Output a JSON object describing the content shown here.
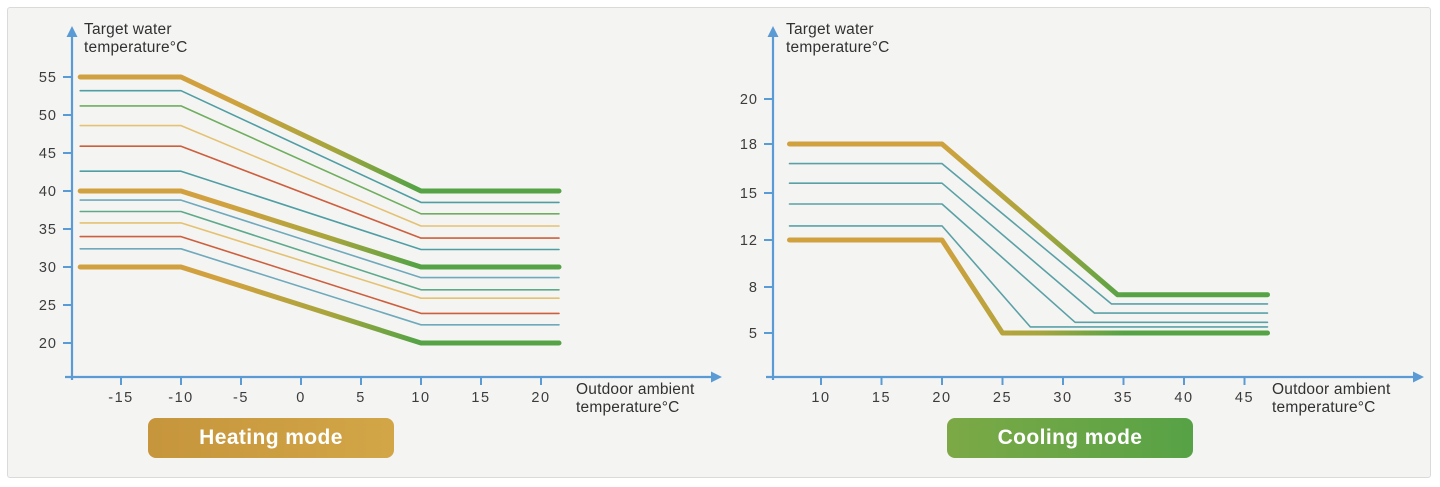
{
  "style": {
    "page_bg": "#ffffff",
    "panel_bg": "#f4f4f3",
    "panel_border": "#d9dbd9",
    "axis_color": "#5b9bd5",
    "tick_text_color": "#3c3c3c",
    "title_text_color": "#313131",
    "thick_line_gradient": [
      "#d2a13f",
      "#a8a53c",
      "#55a345"
    ]
  },
  "charts": [
    {
      "id": "heating",
      "y_title": {
        "line1": "Target water",
        "line2": "temperature°C"
      },
      "x_title": {
        "line1": "Outdoor ambient",
        "line2": "temperature°C"
      },
      "badge": {
        "label": "Heating mode",
        "color_left": "#c6953c",
        "color_right": "#d2a647",
        "text_color": "#ffffff"
      },
      "chart_data": {
        "type": "line",
        "title": "Heating mode",
        "ylabel": "Target water temperature°C",
        "xlabel": "Outdoor ambient temperature°C",
        "y_ticks": [
          55,
          50,
          45,
          40,
          35,
          30,
          25,
          20
        ],
        "x_ticks": [
          -15,
          -10,
          -5,
          0,
          5,
          10,
          15,
          20
        ],
        "x_range_drawn": [
          -18.4,
          21.5
        ],
        "grid": false,
        "series": [
          {
            "name": "upper-boundary",
            "style": "thick",
            "color": "gradient",
            "points": [
              [
                -18.4,
                55
              ],
              [
                -10,
                55
              ],
              [
                10,
                40
              ],
              [
                21.5,
                40
              ]
            ]
          },
          {
            "name": "curve-1",
            "style": "thin",
            "color": "#4f9ea3",
            "points": [
              [
                -18.4,
                53.2
              ],
              [
                -10,
                53.2
              ],
              [
                10,
                38.5
              ],
              [
                21.5,
                38.5
              ]
            ]
          },
          {
            "name": "curve-2",
            "style": "thin",
            "color": "#6fae5e",
            "points": [
              [
                -18.4,
                51.2
              ],
              [
                -10,
                51.2
              ],
              [
                10,
                37
              ],
              [
                21.5,
                37
              ]
            ]
          },
          {
            "name": "curve-3",
            "style": "thin",
            "color": "#e4c272",
            "points": [
              [
                -18.4,
                48.6
              ],
              [
                -10,
                48.6
              ],
              [
                10,
                35.4
              ],
              [
                21.5,
                35.4
              ]
            ]
          },
          {
            "name": "curve-4",
            "style": "thin",
            "color": "#cd5f3d",
            "points": [
              [
                -18.4,
                45.9
              ],
              [
                -10,
                45.9
              ],
              [
                10,
                33.8
              ],
              [
                21.5,
                33.8
              ]
            ]
          },
          {
            "name": "curve-5",
            "style": "thin",
            "color": "#4f9ea3",
            "points": [
              [
                -18.4,
                42.6
              ],
              [
                -10,
                42.6
              ],
              [
                10,
                32.3
              ],
              [
                21.5,
                32.3
              ]
            ]
          },
          {
            "name": "middle-boundary",
            "style": "thick",
            "color": "gradient",
            "points": [
              [
                -18.4,
                40
              ],
              [
                -10,
                40
              ],
              [
                10,
                30
              ],
              [
                21.5,
                30
              ]
            ]
          },
          {
            "name": "curve-6",
            "style": "thin",
            "color": "#6fa9bc",
            "points": [
              [
                -18.4,
                38.8
              ],
              [
                -10,
                38.8
              ],
              [
                10,
                28.6
              ],
              [
                21.5,
                28.6
              ]
            ]
          },
          {
            "name": "curve-7",
            "style": "thin",
            "color": "#5da98c",
            "points": [
              [
                -18.4,
                37.3
              ],
              [
                -10,
                37.3
              ],
              [
                10,
                27
              ],
              [
                21.5,
                27
              ]
            ]
          },
          {
            "name": "curve-8",
            "style": "thin",
            "color": "#e4c272",
            "points": [
              [
                -18.4,
                35.8
              ],
              [
                -10,
                35.8
              ],
              [
                10,
                25.9
              ],
              [
                21.5,
                25.9
              ]
            ]
          },
          {
            "name": "curve-9",
            "style": "thin",
            "color": "#cd5f3d",
            "points": [
              [
                -18.4,
                34
              ],
              [
                -10,
                34
              ],
              [
                10,
                23.9
              ],
              [
                21.5,
                23.9
              ]
            ]
          },
          {
            "name": "curve-10",
            "style": "thin",
            "color": "#6fa9bc",
            "points": [
              [
                -18.4,
                32.4
              ],
              [
                -10,
                32.4
              ],
              [
                10,
                22.4
              ],
              [
                21.5,
                22.4
              ]
            ]
          },
          {
            "name": "lower-boundary",
            "style": "thick",
            "color": "gradient",
            "points": [
              [
                -18.4,
                30
              ],
              [
                -10,
                30
              ],
              [
                10,
                20
              ],
              [
                21.5,
                20
              ]
            ]
          }
        ]
      }
    },
    {
      "id": "cooling",
      "y_title": {
        "line1": "Target water",
        "line2": "temperature°C"
      },
      "x_title": {
        "line1": "Outdoor ambient",
        "line2": "temperature°C"
      },
      "badge": {
        "label": "Cooling mode",
        "color_left": "#7ca946",
        "color_right": "#57a246",
        "text_color": "#ffffff"
      },
      "chart_data": {
        "type": "line",
        "title": "Cooling mode",
        "ylabel": "Target water temperature°C",
        "xlabel": "Outdoor ambient temperature°C",
        "y_ticks": [
          20,
          18,
          15,
          12,
          8,
          5
        ],
        "x_ticks": [
          10,
          15,
          20,
          25,
          30,
          35,
          40,
          45
        ],
        "x_range_drawn": [
          7.4,
          46.9
        ],
        "grid": false,
        "series": [
          {
            "name": "upper-boundary",
            "style": "thick",
            "color": "gradient",
            "points": [
              [
                7.4,
                18
              ],
              [
                20,
                18
              ],
              [
                34.5,
                7.5
              ],
              [
                46.9,
                7.5
              ]
            ]
          },
          {
            "name": "curve-1",
            "style": "thin",
            "color": "#5aa1a6",
            "points": [
              [
                7.4,
                16.8
              ],
              [
                20,
                16.8
              ],
              [
                34,
                6.9
              ],
              [
                46.9,
                6.9
              ]
            ]
          },
          {
            "name": "curve-2",
            "style": "thin",
            "color": "#5aa1a6",
            "points": [
              [
                7.4,
                15.6
              ],
              [
                20,
                15.6
              ],
              [
                32.6,
                6.3
              ],
              [
                46.9,
                6.3
              ]
            ]
          },
          {
            "name": "curve-3",
            "style": "thin",
            "color": "#5aa1a6",
            "points": [
              [
                7.4,
                14.3
              ],
              [
                20,
                14.3
              ],
              [
                31,
                5.7
              ],
              [
                46.9,
                5.7
              ]
            ]
          },
          {
            "name": "curve-4",
            "style": "thin",
            "color": "#5aa1a6",
            "points": [
              [
                7.4,
                12.9
              ],
              [
                20,
                12.9
              ],
              [
                27.3,
                5.4
              ],
              [
                46.9,
                5.4
              ]
            ]
          },
          {
            "name": "lower-boundary",
            "style": "thick",
            "color": "gradient",
            "points": [
              [
                7.4,
                12
              ],
              [
                20,
                12
              ],
              [
                25,
                5
              ],
              [
                46.9,
                5
              ]
            ]
          }
        ]
      }
    }
  ]
}
